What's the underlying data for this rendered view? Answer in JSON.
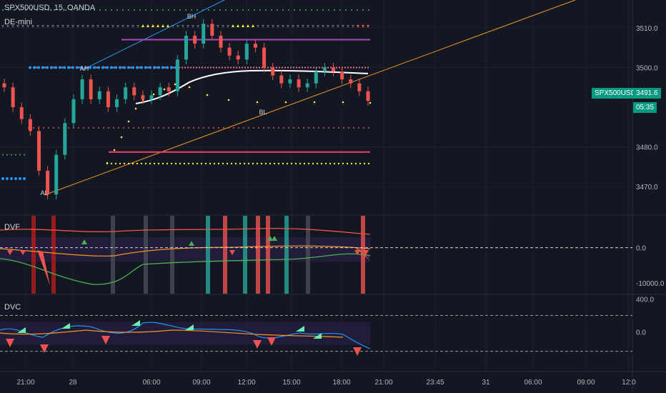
{
  "header": {
    "symbol_line": "SPX500USD, 15, OANDA",
    "indicator_name": "DE-mini"
  },
  "price_panel": {
    "last_symbol": "SPX500USD",
    "last_price": "3491.6",
    "countdown": "05:35",
    "marker_labels": [
      "BH",
      "AH",
      "BL",
      "AL"
    ]
  },
  "dvf_panel": {
    "label": "DVF"
  },
  "dvc_panel": {
    "label": "DVC"
  },
  "colors": {
    "background": "#131722",
    "up_candle": "#26a69a",
    "down_candle": "#ef5350",
    "orange_line": "#f59323",
    "blue_line": "#2196f3",
    "magenta": "#e040fb",
    "pink": "#f23d6d",
    "yellow": "#ffeb3b",
    "teal_tag": "#089981"
  },
  "chart_data": [
    {
      "type": "line",
      "title": "SPX500USD, 15, OANDA",
      "y_axis_ticks": [
        3510.0,
        3500.0,
        3480.0,
        3470.0
      ],
      "y_axis_labels": [
        "3510.0",
        "3500.0",
        "3480.0",
        "3470.0"
      ],
      "ylim": [
        3463,
        3517
      ],
      "x_axis_labels": [
        "21:00",
        "28",
        "06:00",
        "09:00",
        "12:00",
        "15:00",
        "18:00",
        "21:00",
        "23:45",
        "31",
        "06:00",
        "09:00",
        "12:0"
      ],
      "series": [
        {
          "values": [
            3495,
            3490,
            3487,
            3484,
            3474,
            3468,
            3478,
            3486,
            3492,
            3497,
            3492,
            3494,
            3490,
            3492,
            3495,
            3493,
            3492,
            3493,
            3495,
            3494,
            3502,
            3508,
            3506,
            3511,
            3508,
            3505,
            3503,
            3502,
            3506,
            3505,
            3500,
            3498,
            3496,
            3497,
            3495,
            3496,
            3499,
            3500,
            3499,
            3497,
            3496,
            3494,
            3491.6
          ]
        }
      ],
      "levels": [
        3507,
        3500,
        3485,
        3483,
        3478
      ],
      "last_price": 3491.6
    },
    {
      "type": "area",
      "title": "DVF",
      "y_axis_ticks": [
        0.0,
        -10000.0
      ],
      "y_axis_labels": [
        "0.0",
        "-10000.0"
      ],
      "ylim": [
        -13000,
        9000
      ]
    },
    {
      "type": "area",
      "title": "DVC",
      "y_axis_ticks": [
        400.0,
        0.0
      ],
      "y_axis_labels": [
        "400.0",
        "0.0"
      ],
      "ylim": [
        -480,
        450
      ]
    }
  ]
}
